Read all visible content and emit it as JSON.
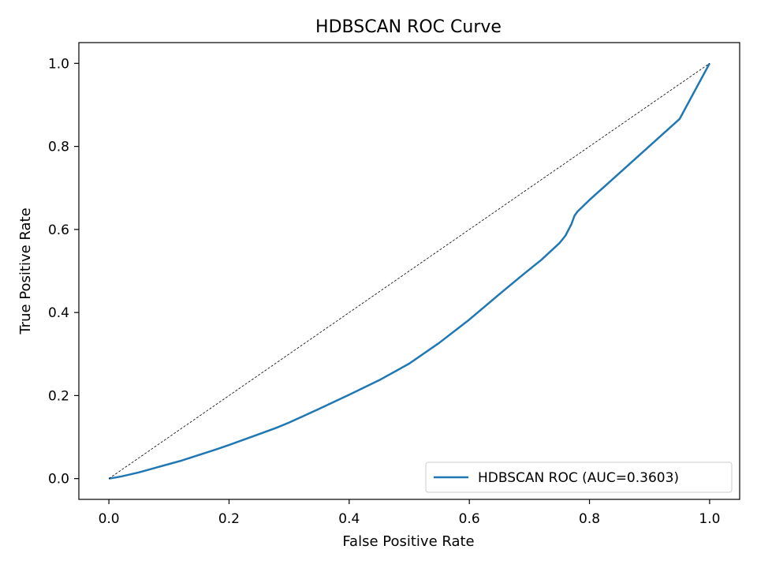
{
  "chart_data": {
    "type": "line",
    "title": "HDBSCAN ROC Curve",
    "xlabel": "False Positive Rate",
    "ylabel": "True Positive Rate",
    "xlim": [
      -0.05,
      1.05
    ],
    "ylim": [
      -0.05,
      1.05
    ],
    "x_ticks": [
      0.0,
      0.2,
      0.4,
      0.6,
      0.8,
      1.0
    ],
    "y_ticks": [
      0.0,
      0.2,
      0.4,
      0.6,
      0.8,
      1.0
    ],
    "x_tick_labels": [
      "0.0",
      "0.2",
      "0.4",
      "0.6",
      "0.8",
      "1.0"
    ],
    "y_tick_labels": [
      "0.0",
      "0.2",
      "0.4",
      "0.6",
      "0.8",
      "1.0"
    ],
    "grid": false,
    "legend_position": "lower-right",
    "series": [
      {
        "name": "HDBSCAN ROC (AUC=0.3603)",
        "color": "#1f77b4",
        "style": "solid",
        "x": [
          0.0,
          0.02,
          0.05,
          0.08,
          0.1,
          0.12,
          0.15,
          0.18,
          0.2,
          0.25,
          0.28,
          0.3,
          0.35,
          0.4,
          0.45,
          0.5,
          0.55,
          0.6,
          0.65,
          0.69,
          0.72,
          0.75,
          0.76,
          0.77,
          0.775,
          0.78,
          0.8,
          0.85,
          0.9,
          0.95,
          1.0
        ],
        "y": [
          0.0,
          0.005,
          0.015,
          0.027,
          0.035,
          0.043,
          0.057,
          0.071,
          0.081,
          0.107,
          0.123,
          0.135,
          0.168,
          0.202,
          0.237,
          0.277,
          0.327,
          0.383,
          0.444,
          0.492,
          0.527,
          0.567,
          0.585,
          0.613,
          0.633,
          0.643,
          0.671,
          0.736,
          0.801,
          0.866,
          1.0
        ]
      },
      {
        "color": "#000000",
        "style": "dashed",
        "x": [
          0.0,
          1.0
        ],
        "y": [
          0.0,
          1.0
        ]
      }
    ]
  }
}
